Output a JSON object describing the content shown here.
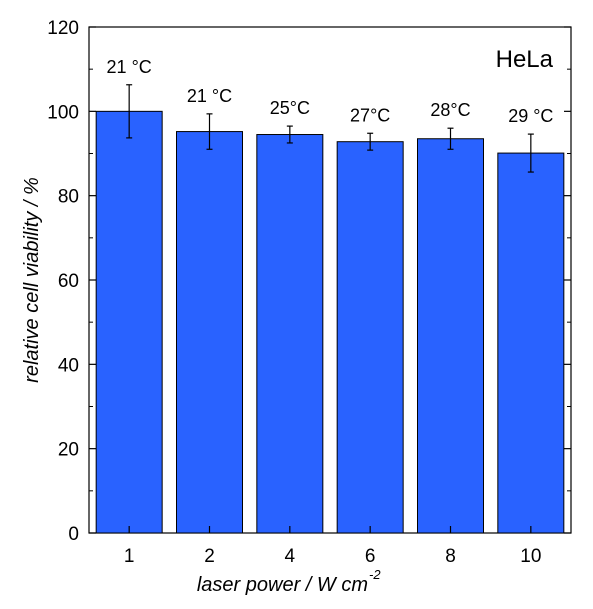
{
  "chart_data": {
    "type": "bar",
    "title": "",
    "annotation": "HeLa",
    "xlabel": "laser power / W cm",
    "xlabel_superscript": "-2",
    "ylabel": "relative cell viability / %",
    "categories": [
      "1",
      "2",
      "4",
      "6",
      "8",
      "10"
    ],
    "values": [
      100,
      95.2,
      94.5,
      92.8,
      93.5,
      90.1
    ],
    "errors": [
      6.3,
      4.2,
      2.0,
      2.0,
      2.5,
      4.5
    ],
    "data_labels": [
      "21 °C",
      "21 °C",
      "25°C",
      "27°C",
      "28°C",
      "29 °C"
    ],
    "ylim": [
      0,
      120
    ],
    "yticks": [
      "0",
      "20",
      "40",
      "60",
      "80",
      "100",
      "120"
    ],
    "grid": false,
    "bar_color": "#2962ff",
    "bar_edge_color": "#000000"
  }
}
